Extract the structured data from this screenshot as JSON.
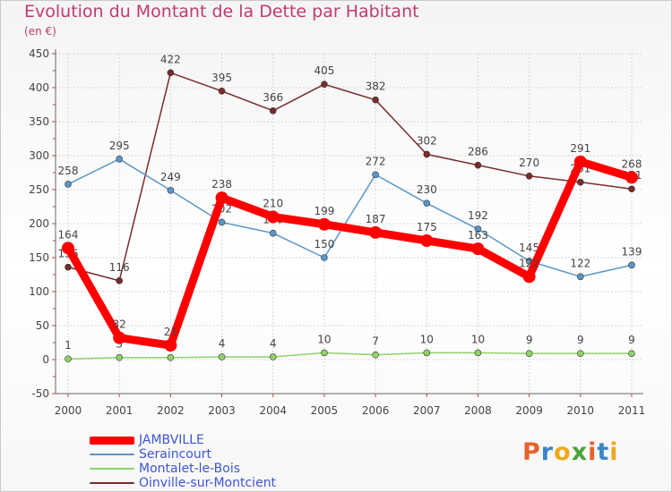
{
  "title": "Evolution du Montant de la Dette par Habitant",
  "unit": "(en €)",
  "logo": {
    "letters": [
      "P",
      "r",
      "o",
      "x",
      "i",
      "t",
      "i"
    ],
    "colors": [
      "#e8622c",
      "#3b86c8",
      "#f0a91e",
      "#4aa43c",
      "#e8622c",
      "#3b86c8",
      "#f0a91e"
    ]
  },
  "chart_data": {
    "type": "line",
    "x": [
      "2000",
      "2001",
      "2002",
      "2003",
      "2004",
      "2005",
      "2006",
      "2007",
      "2008",
      "2009",
      "2010",
      "2011"
    ],
    "ylim": [
      -50,
      450
    ],
    "yticks": [
      -50,
      0,
      50,
      100,
      150,
      200,
      250,
      300,
      350,
      400,
      450
    ],
    "grid": true,
    "legend": "bottom-left",
    "series": [
      {
        "name": "Oinville-sur-Montcient",
        "color": "#7a2b2b",
        "values": [
          136,
          116,
          422,
          395,
          366,
          405,
          382,
          302,
          286,
          270,
          261,
          251
        ]
      },
      {
        "name": "Seraincourt",
        "color": "#5a96c8",
        "values": [
          258,
          295,
          249,
          202,
          186,
          150,
          272,
          230,
          192,
          145,
          122,
          139
        ]
      },
      {
        "name": "Montalet-le-Bois",
        "color": "#8fd26a",
        "values": [
          1,
          3,
          3,
          4,
          4,
          10,
          7,
          10,
          10,
          9,
          9,
          9
        ]
      },
      {
        "name": "JAMBVILLE",
        "color": "#ff0000",
        "values": [
          164,
          32,
          21,
          238,
          210,
          199,
          187,
          175,
          163,
          122,
          291,
          268
        ]
      }
    ]
  }
}
